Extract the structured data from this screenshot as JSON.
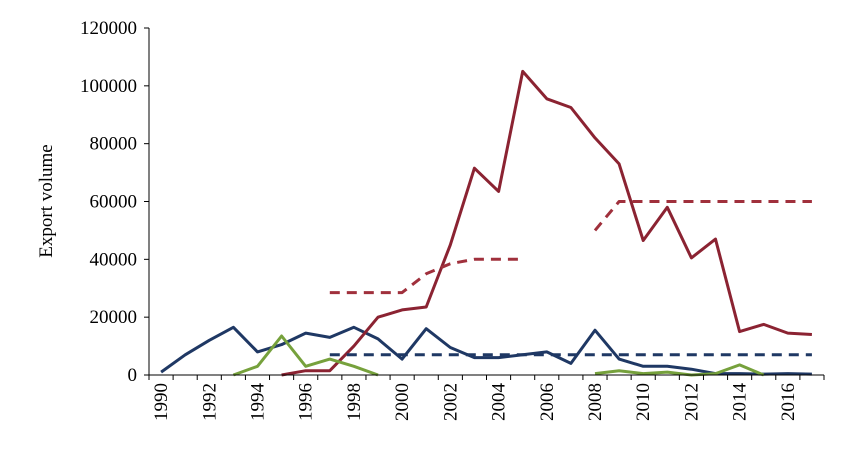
{
  "chart_data": {
    "type": "line",
    "title": "",
    "xlabel": "",
    "ylabel": "Export volume",
    "xlim": [
      1990,
      2017
    ],
    "ylim": [
      0,
      120000
    ],
    "y_ticks": [
      0,
      20000,
      40000,
      60000,
      80000,
      100000,
      120000
    ],
    "x_ticks": [
      1990,
      1992,
      1994,
      1996,
      1998,
      2000,
      2002,
      2004,
      2006,
      2008,
      2010,
      2012,
      2014,
      2016
    ],
    "x_tick_rotation": "vertical",
    "grid": false,
    "legend": "none",
    "series": [
      {
        "color": "#1f3864",
        "style": "solid",
        "points": [
          [
            1990,
            1000
          ],
          [
            1991,
            7000
          ],
          [
            1992,
            12000
          ],
          [
            1993,
            16500
          ],
          [
            1994,
            8000
          ],
          [
            1995,
            10500
          ],
          [
            1996,
            14500
          ],
          [
            1997,
            13000
          ],
          [
            1998,
            16500
          ],
          [
            1999,
            12500
          ],
          [
            2000,
            5500
          ],
          [
            2001,
            16000
          ],
          [
            2002,
            9500
          ],
          [
            2003,
            6000
          ],
          [
            2004,
            6000
          ],
          [
            2005,
            7000
          ],
          [
            2006,
            8000
          ],
          [
            2007,
            4000
          ],
          [
            2008,
            15500
          ],
          [
            2009,
            5500
          ],
          [
            2010,
            3000
          ],
          [
            2011,
            3000
          ],
          [
            2012,
            2000
          ],
          [
            2013,
            500
          ],
          [
            2014,
            500
          ],
          [
            2015,
            300
          ],
          [
            2016,
            500
          ],
          [
            2017,
            300
          ]
        ]
      },
      {
        "color": "#8b2332",
        "style": "solid",
        "points": [
          [
            1995,
            0
          ],
          [
            1996,
            1500
          ],
          [
            1997,
            1500
          ],
          [
            1998,
            10000
          ],
          [
            1999,
            20000
          ],
          [
            2000,
            22500
          ],
          [
            2001,
            23500
          ],
          [
            2002,
            45000
          ],
          [
            2003,
            71500
          ],
          [
            2004,
            63500
          ],
          [
            2005,
            105000
          ],
          [
            2006,
            95500
          ],
          [
            2007,
            92500
          ],
          [
            2008,
            82000
          ],
          [
            2009,
            73000
          ],
          [
            2010,
            46500
          ],
          [
            2011,
            58000
          ],
          [
            2012,
            40500
          ],
          [
            2013,
            47000
          ],
          [
            2014,
            15000
          ],
          [
            2015,
            17500
          ],
          [
            2016,
            14500
          ],
          [
            2017,
            14000
          ]
        ]
      },
      {
        "color": "#76a13c",
        "style": "solid",
        "points": [
          [
            1993,
            0
          ],
          [
            1994,
            3000
          ],
          [
            1995,
            13500
          ],
          [
            1996,
            3000
          ],
          [
            1997,
            5500
          ],
          [
            1998,
            3000
          ],
          [
            1999,
            0
          ],
          [
            null,
            null
          ],
          [
            2008,
            500
          ],
          [
            2009,
            1500
          ],
          [
            2010,
            500
          ],
          [
            2011,
            1000
          ],
          [
            2012,
            0
          ],
          [
            2013,
            500
          ],
          [
            2014,
            3500
          ],
          [
            2015,
            0
          ]
        ]
      },
      {
        "color": "#1f3864",
        "style": "dashed",
        "points": [
          [
            1997,
            7000
          ],
          [
            2017,
            7000
          ]
        ]
      },
      {
        "color": "#a0303c",
        "style": "dashed",
        "points": [
          [
            1997,
            28500
          ],
          [
            2000,
            28500
          ],
          [
            2001,
            35000
          ],
          [
            2002,
            38500
          ],
          [
            2003,
            40000
          ],
          [
            2005,
            40000
          ],
          [
            null,
            null
          ],
          [
            2008,
            50000
          ],
          [
            2009,
            60000
          ],
          [
            2017,
            60000
          ]
        ]
      }
    ]
  }
}
